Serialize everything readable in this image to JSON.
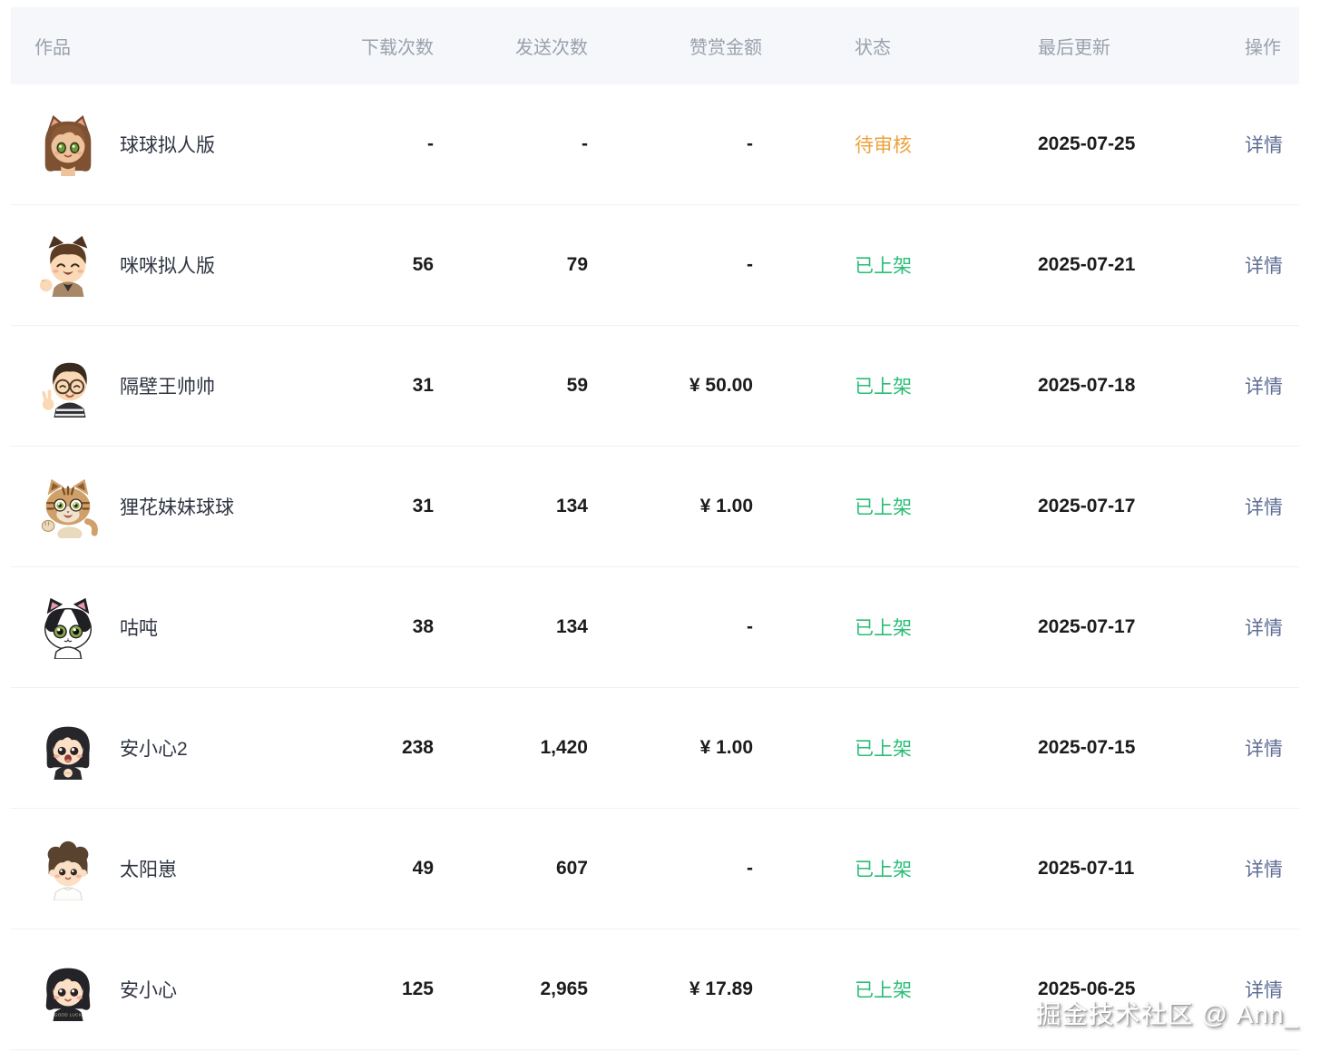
{
  "table": {
    "columns": [
      {
        "key": "work",
        "label": "作品"
      },
      {
        "key": "downloads",
        "label": "下载次数"
      },
      {
        "key": "sends",
        "label": "发送次数"
      },
      {
        "key": "amount",
        "label": "赞赏金额"
      },
      {
        "key": "status",
        "label": "状态"
      },
      {
        "key": "updated",
        "label": "最后更新"
      },
      {
        "key": "action",
        "label": "操作"
      }
    ],
    "action_label": "详情",
    "rows": [
      {
        "name": "球球拟人版",
        "avatar": "girl-cat-sticker",
        "downloads": "-",
        "sends": "-",
        "amount": "-",
        "status": "待审核",
        "status_type": "pending",
        "updated": "2025-07-25"
      },
      {
        "name": "咪咪拟人版",
        "avatar": "boy-cat-sticker",
        "downloads": "56",
        "sends": "79",
        "amount": "-",
        "status": "已上架",
        "status_type": "live",
        "updated": "2025-07-21"
      },
      {
        "name": "隔壁王帅帅",
        "avatar": "glasses-man-sticker",
        "downloads": "31",
        "sends": "59",
        "amount": "¥ 50.00",
        "status": "已上架",
        "status_type": "live",
        "updated": "2025-07-18"
      },
      {
        "name": "狸花妹妹球球",
        "avatar": "tabby-cat-sticker",
        "downloads": "31",
        "sends": "134",
        "amount": "¥ 1.00",
        "status": "已上架",
        "status_type": "live",
        "updated": "2025-07-17"
      },
      {
        "name": "咕吨",
        "avatar": "tuxedo-cat-sticker",
        "downloads": "38",
        "sends": "134",
        "amount": "-",
        "status": "已上架",
        "status_type": "live",
        "updated": "2025-07-17"
      },
      {
        "name": "安小心2",
        "avatar": "girl-bob-open-sticker",
        "downloads": "238",
        "sends": "1,420",
        "amount": "¥ 1.00",
        "status": "已上架",
        "status_type": "live",
        "updated": "2025-07-15"
      },
      {
        "name": "太阳崽",
        "avatar": "boy-brown-sticker",
        "downloads": "49",
        "sends": "607",
        "amount": "-",
        "status": "已上架",
        "status_type": "live",
        "updated": "2025-07-11"
      },
      {
        "name": "安小心",
        "avatar": "girl-bob-goodluck-sticker",
        "downloads": "125",
        "sends": "2,965",
        "amount": "¥ 17.89",
        "status": "已上架",
        "status_type": "live",
        "updated": "2025-06-25"
      }
    ]
  },
  "colors": {
    "status_pending": "#eda23c",
    "status_live": "#2abd77",
    "link": "#5f6e95",
    "header_bg": "#f5f7fa"
  },
  "watermark": "掘金技术社区 @ Ann_"
}
